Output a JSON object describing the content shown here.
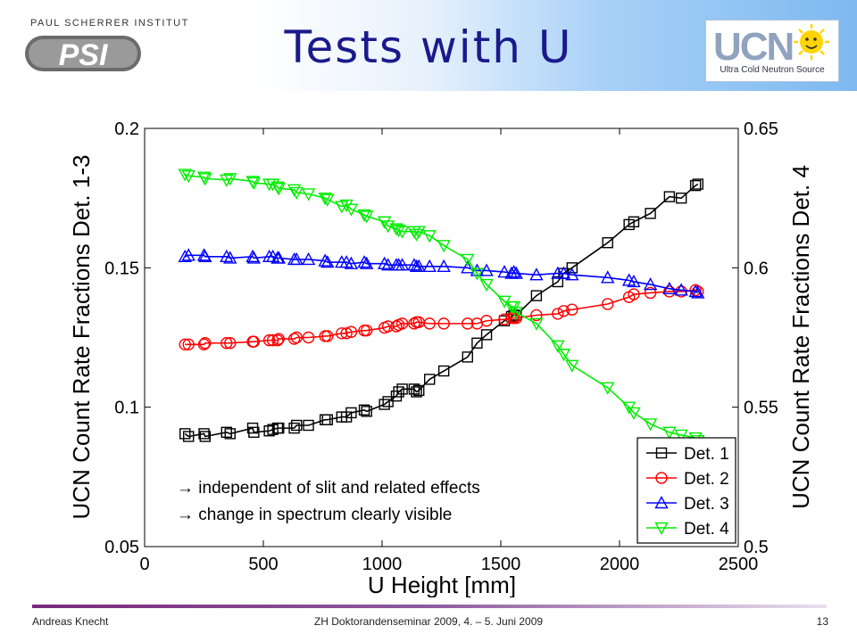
{
  "header": {
    "institute": "PAUL SCHERRER INSTITUT",
    "psi_logo": "PSI",
    "title": "Tests with U",
    "ucn_logo": "UCN",
    "ucn_caption": "Ultra Cold Neutron Source"
  },
  "notes": [
    "→ independent of slit and related effects",
    "→ change in spectrum clearly visible"
  ],
  "footer": {
    "author": "Andreas Knecht",
    "event": "ZH Doktorandenseminar 2009, 4. – 5. Juni 2009",
    "page": "13"
  },
  "chart_data": {
    "type": "line",
    "xlabel": "U Height [mm]",
    "ylabel_left": "UCN Count Rate Fractions Det. 1-3",
    "ylabel_right": "UCN Count Rate Fractions Det. 4",
    "xlim": [
      0,
      2500
    ],
    "ylim_left": [
      0.05,
      0.2
    ],
    "ylim_right": [
      0.5,
      0.65
    ],
    "x_ticks": [
      "0",
      "500",
      "1000",
      "1500",
      "2000",
      "2500"
    ],
    "y_ticks_left": [
      "0.05",
      "0.1",
      "0.15",
      "0.2"
    ],
    "y_ticks_right": [
      "0.5",
      "0.55",
      "0.6",
      "0.65"
    ],
    "legend_position": "bottom-right",
    "colors": {
      "det1": "#000000",
      "det2": "#ff0000",
      "det3": "#0000ff",
      "det4": "#00ee00"
    },
    "x": [
      170,
      185,
      250,
      255,
      345,
      360,
      455,
      460,
      525,
      540,
      560,
      565,
      630,
      640,
      690,
      760,
      770,
      830,
      850,
      870,
      925,
      935,
      1010,
      1025,
      1060,
      1070,
      1085,
      1135,
      1145,
      1155,
      1200,
      1260,
      1360,
      1400,
      1440,
      1515,
      1545,
      1555,
      1565,
      1650,
      1740,
      1765,
      1800,
      1950,
      2040,
      2060,
      2130,
      2210,
      2260,
      2320,
      2330
    ],
    "series": [
      {
        "name": "Det. 1",
        "axis": "left",
        "marker": "square",
        "values": [
          0.0905,
          0.0895,
          0.0905,
          0.0895,
          0.091,
          0.0905,
          0.0925,
          0.091,
          0.0915,
          0.092,
          0.0925,
          0.0925,
          0.0925,
          0.0935,
          0.0935,
          0.0955,
          0.0955,
          0.0965,
          0.0965,
          0.098,
          0.099,
          0.0985,
          0.101,
          0.102,
          0.104,
          0.1055,
          0.1065,
          0.1065,
          0.1055,
          0.106,
          0.11,
          0.113,
          0.118,
          0.123,
          0.126,
          0.131,
          0.1325,
          0.133,
          0.133,
          0.14,
          0.145,
          0.148,
          0.15,
          0.159,
          0.1655,
          0.1665,
          0.1695,
          0.1755,
          0.175,
          0.1795,
          0.18
        ]
      },
      {
        "name": "Det. 2",
        "axis": "left",
        "marker": "circle",
        "values": [
          0.1225,
          0.1225,
          0.1225,
          0.123,
          0.123,
          0.123,
          0.1235,
          0.1235,
          0.124,
          0.124,
          0.124,
          0.1245,
          0.1245,
          0.125,
          0.125,
          0.1255,
          0.1255,
          0.1265,
          0.1265,
          0.127,
          0.1275,
          0.1275,
          0.1285,
          0.129,
          0.129,
          0.1295,
          0.13,
          0.13,
          0.1305,
          0.1305,
          0.13,
          0.13,
          0.13,
          0.13,
          0.131,
          0.1315,
          0.132,
          0.132,
          0.132,
          0.133,
          0.1335,
          0.1345,
          0.135,
          0.137,
          0.1395,
          0.1405,
          0.141,
          0.1415,
          0.1415,
          0.142,
          0.1415
        ]
      },
      {
        "name": "Det. 3",
        "axis": "left",
        "marker": "triangle-up",
        "values": [
          0.154,
          0.1545,
          0.1545,
          0.154,
          0.154,
          0.1535,
          0.154,
          0.1535,
          0.154,
          0.154,
          0.1535,
          0.1535,
          0.153,
          0.153,
          0.153,
          0.1525,
          0.152,
          0.152,
          0.152,
          0.1515,
          0.152,
          0.1515,
          0.1515,
          0.151,
          0.151,
          0.151,
          0.151,
          0.151,
          0.1505,
          0.1505,
          0.1505,
          0.1505,
          0.15,
          0.149,
          0.149,
          0.1485,
          0.148,
          0.1485,
          0.148,
          0.1475,
          0.148,
          0.148,
          0.1475,
          0.1465,
          0.1455,
          0.145,
          0.144,
          0.1425,
          0.142,
          0.1415,
          0.141
        ]
      },
      {
        "name": "Det. 4",
        "axis": "right",
        "marker": "triangle-down",
        "values": [
          0.6335,
          0.633,
          0.6325,
          0.632,
          0.6315,
          0.632,
          0.631,
          0.6305,
          0.63,
          0.63,
          0.629,
          0.6285,
          0.628,
          0.627,
          0.6265,
          0.625,
          0.6245,
          0.622,
          0.6225,
          0.621,
          0.619,
          0.6185,
          0.6165,
          0.615,
          0.614,
          0.6135,
          0.613,
          0.613,
          0.612,
          0.613,
          0.6115,
          0.608,
          0.603,
          0.598,
          0.594,
          0.588,
          0.586,
          0.586,
          0.584,
          0.58,
          0.572,
          0.569,
          0.565,
          0.557,
          0.55,
          0.548,
          0.544,
          0.541,
          0.54,
          0.539,
          0.538
        ]
      }
    ]
  }
}
